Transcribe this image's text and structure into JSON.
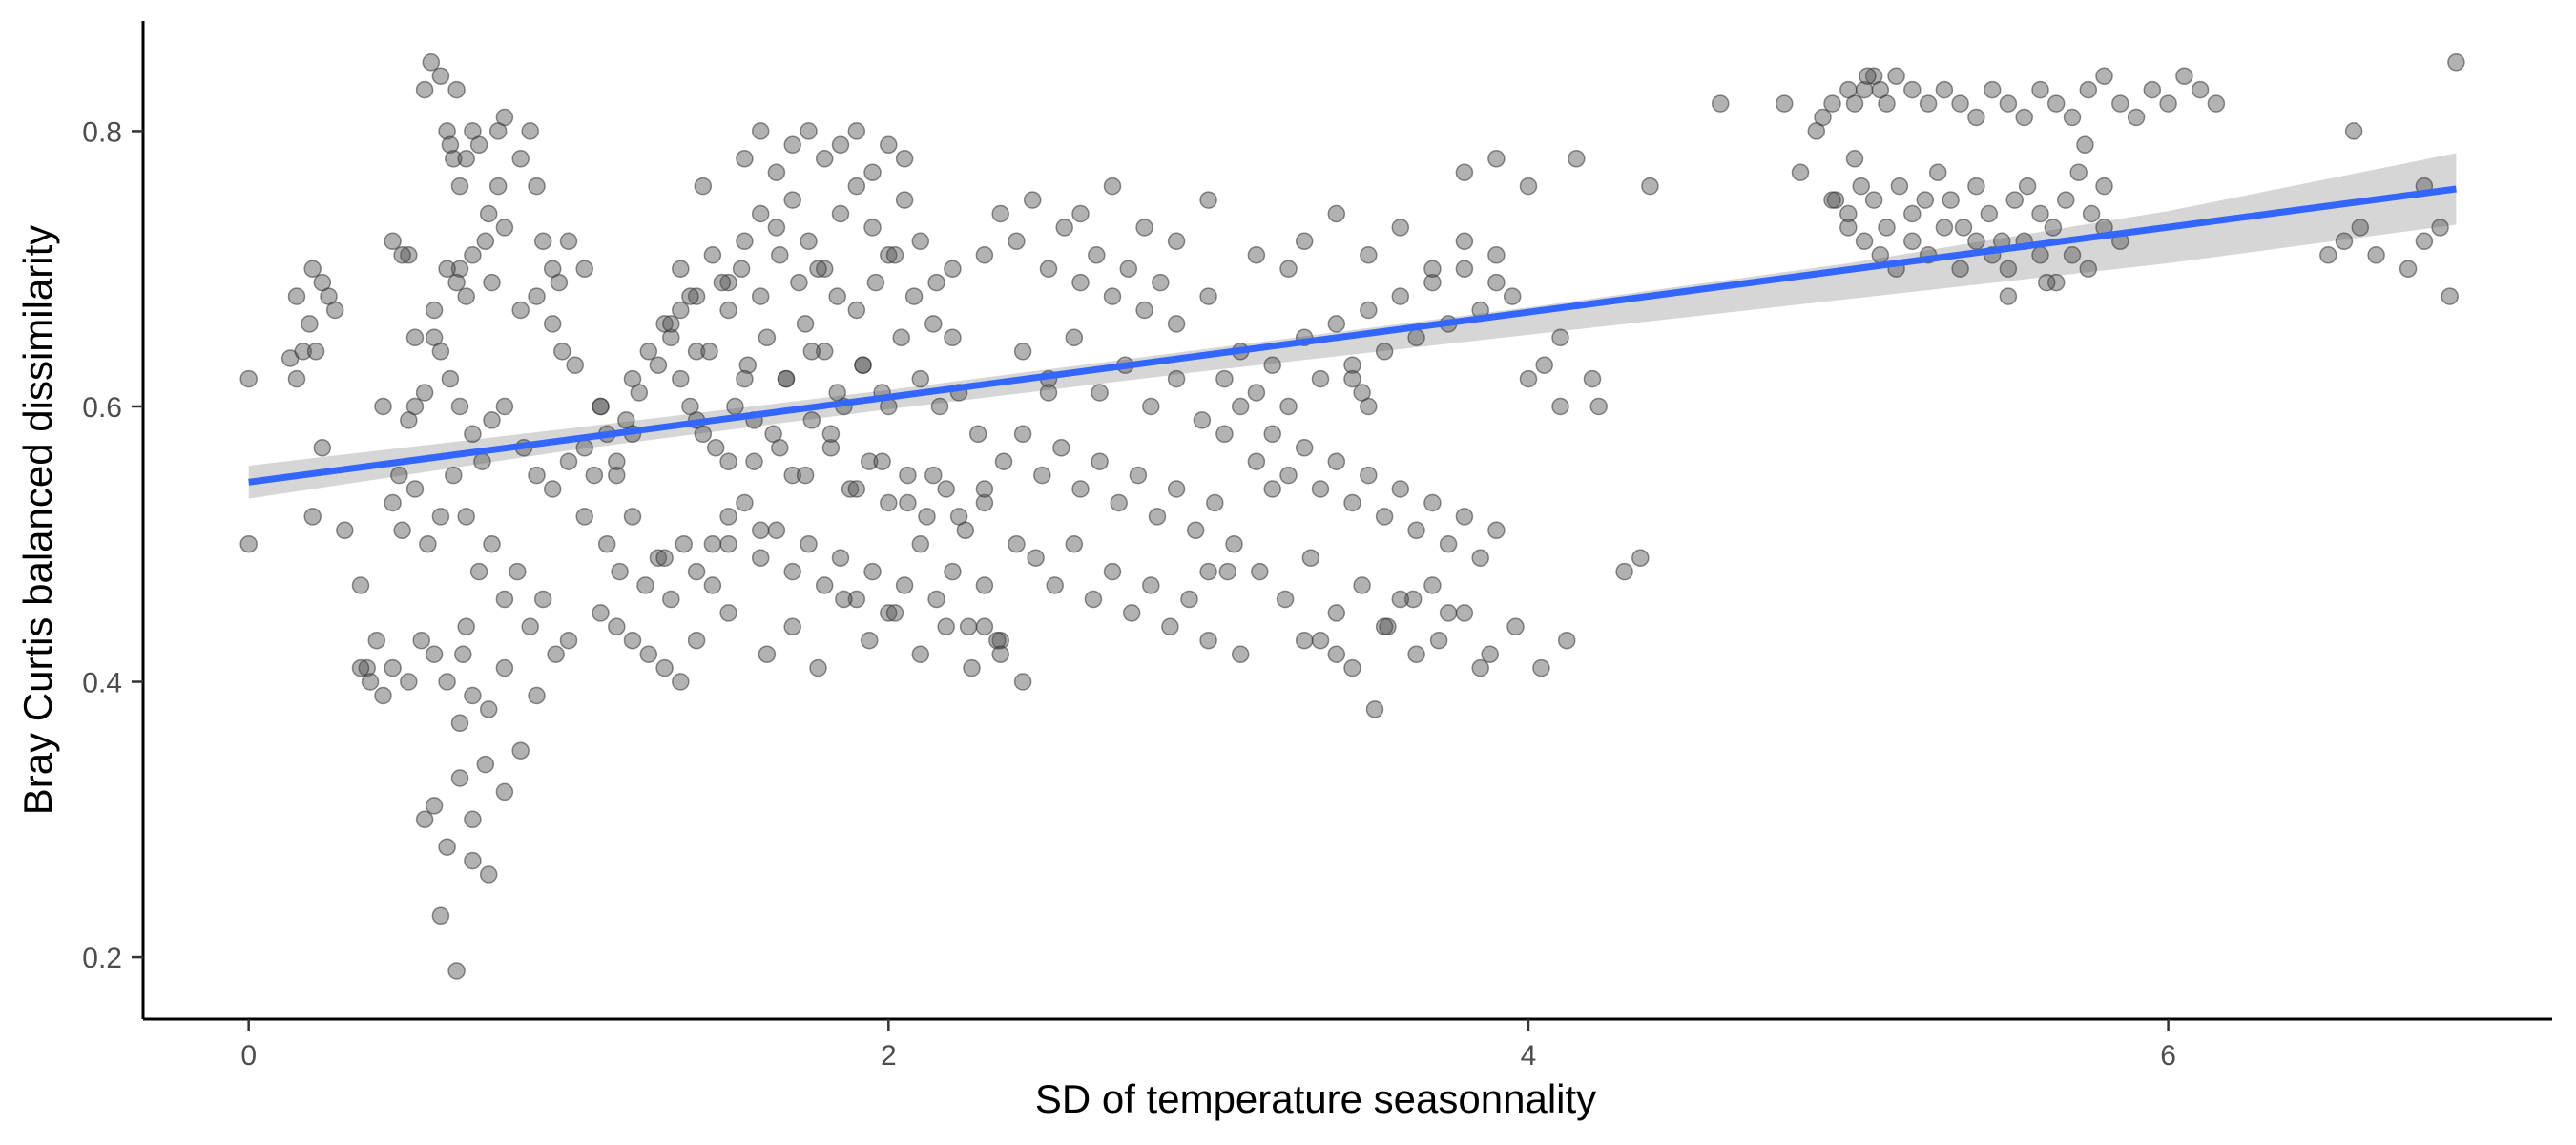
{
  "chart_data": {
    "type": "scatter",
    "title": "",
    "xlabel": "SD of temperature seasonnality",
    "ylabel": "Bray Curtis balanced dissimilarity",
    "xlim": [
      -0.33,
      7.2
    ],
    "ylim": [
      0.155,
      0.88
    ],
    "x_ticks": [
      0,
      2,
      4,
      6
    ],
    "y_ticks": [
      0.2,
      0.4,
      0.6,
      0.8
    ],
    "x_tick_labels": [
      "0",
      "2",
      "4",
      "6"
    ],
    "y_tick_labels": [
      "0.2",
      "0.4",
      "0.6",
      "0.8"
    ],
    "grid": false,
    "legend": "none",
    "colors": {
      "points": "#555555",
      "fit_line": "#3366FF",
      "ribbon": "#c8c8c8",
      "axis": "#000000"
    },
    "fit_line": {
      "x": [
        0,
        6.9
      ],
      "y": [
        0.545,
        0.758
      ]
    },
    "confidence_band": {
      "x": [
        0,
        1,
        2,
        3,
        4,
        5,
        6,
        6.9
      ],
      "lower": [
        0.533,
        0.568,
        0.598,
        0.626,
        0.652,
        0.678,
        0.704,
        0.732
      ],
      "upper": [
        0.557,
        0.584,
        0.612,
        0.642,
        0.672,
        0.704,
        0.742,
        0.784
      ]
    },
    "points": {
      "x": [
        0.0,
        0.0,
        0.13,
        0.15,
        0.17,
        0.19,
        0.2,
        0.21,
        0.23,
        0.25,
        0.27,
        0.2,
        0.15,
        0.23,
        0.3,
        0.35,
        0.37,
        0.4,
        0.42,
        0.45,
        0.47,
        0.5,
        0.52,
        0.48,
        0.55,
        0.57,
        0.6,
        0.62,
        0.65,
        0.63,
        0.64,
        0.66,
        0.68,
        0.66,
        0.7,
        0.72,
        0.74,
        0.76,
        0.78,
        0.8,
        0.85,
        0.88,
        0.9,
        0.92,
        0.95,
        0.97,
        1.0,
        1.05,
        0.58,
        0.62,
        0.65,
        0.68,
        0.7,
        0.75,
        0.78,
        0.8,
        0.85,
        0.9,
        0.95,
        0.98,
        1.02,
        0.5,
        0.52,
        0.55,
        0.58,
        0.6,
        0.63,
        0.66,
        0.7,
        0.73,
        0.76,
        0.8,
        0.86,
        0.9,
        0.95,
        1.0,
        1.05,
        1.1,
        1.15,
        1.2,
        0.45,
        0.48,
        0.52,
        0.56,
        0.6,
        0.64,
        0.68,
        0.72,
        0.76,
        0.8,
        0.84,
        0.88,
        0.92,
        0.96,
        1.0,
        0.35,
        0.38,
        0.42,
        0.45,
        0.5,
        0.54,
        0.58,
        0.62,
        0.66,
        0.7,
        0.75,
        0.8,
        0.85,
        0.9,
        0.55,
        0.58,
        0.62,
        0.66,
        0.7,
        0.74,
        0.6,
        0.65,
        0.7,
        0.75,
        0.8,
        0.67,
        0.68,
        1.1,
        1.12,
        1.15,
        1.18,
        1.2,
        1.22,
        1.25,
        1.28,
        1.3,
        1.32,
        1.35,
        1.38,
        1.4,
        1.05,
        1.08,
        1.12,
        1.16,
        1.2,
        1.24,
        1.28,
        1.32,
        1.36,
        1.4,
        1.1,
        1.15,
        1.2,
        1.25,
        1.3,
        1.35,
        1.4,
        1.45,
        1.5,
        1.3,
        1.35,
        1.4,
        1.45,
        1.5,
        1.55,
        1.6,
        1.65,
        1.7,
        1.75,
        1.8,
        1.85,
        1.9,
        1.95,
        2.0,
        2.05,
        2.1,
        2.15,
        2.2,
        1.32,
        1.38,
        1.44,
        1.5,
        1.56,
        1.62,
        1.68,
        1.74,
        1.8,
        1.86,
        1.92,
        1.98,
        2.04,
        2.1,
        2.16,
        2.22,
        2.28,
        1.4,
        1.46,
        1.52,
        1.58,
        1.64,
        1.7,
        1.76,
        1.82,
        1.88,
        1.94,
        2.0,
        2.06,
        2.12,
        2.18,
        2.24,
        2.3,
        1.45,
        1.5,
        1.55,
        1.6,
        1.65,
        1.7,
        1.75,
        1.8,
        1.85,
        1.9,
        1.95,
        2.0,
        2.05,
        2.1,
        2.15,
        2.2,
        2.25,
        2.3,
        2.35,
        1.5,
        1.55,
        1.6,
        1.65,
        1.7,
        1.75,
        1.8,
        1.85,
        1.9,
        1.95,
        2.0,
        2.05,
        1.42,
        1.48,
        1.54,
        1.6,
        1.66,
        1.72,
        1.78,
        1.84,
        1.9,
        1.96,
        2.02,
        2.08,
        2.14,
        2.2,
        1.35,
        1.42,
        1.5,
        1.58,
        1.66,
        1.74,
        1.82,
        1.9,
        1.98,
        2.06,
        2.14,
        2.22,
        2.3,
        1.6,
        1.68,
        1.76,
        1.84,
        1.92,
        2.0,
        1.55,
        1.62,
        1.7,
        1.78,
        1.86,
        1.94,
        2.02,
        2.1,
        2.18,
        2.26,
        2.34,
        2.42,
        2.3,
        2.35,
        2.4,
        2.45,
        2.5,
        2.55,
        2.6,
        2.65,
        2.7,
        2.75,
        2.8,
        2.85,
        2.9,
        2.3,
        2.36,
        2.42,
        2.48,
        2.54,
        2.6,
        2.66,
        2.72,
        2.78,
        2.84,
        2.9,
        2.96,
        3.02,
        2.4,
        2.46,
        2.52,
        2.58,
        2.64,
        2.7,
        2.76,
        2.82,
        2.88,
        2.94,
        3.0,
        3.06,
        2.35,
        2.42,
        2.5,
        2.58,
        2.66,
        2.74,
        2.82,
        2.9,
        2.98,
        2.5,
        2.6,
        2.7,
        2.8,
        2.9,
        3.0,
        3.0,
        3.05,
        3.1,
        3.15,
        3.2,
        3.25,
        3.3,
        3.35,
        3.4,
        3.45,
        3.5,
        3.55,
        3.6,
        3.65,
        3.7,
        3.75,
        3.8,
        3.85,
        3.9,
        3.95,
        4.0,
        4.05,
        4.1,
        3.05,
        3.1,
        3.15,
        3.2,
        3.25,
        3.3,
        3.35,
        3.4,
        3.45,
        3.5,
        3.55,
        3.6,
        3.65,
        3.7,
        3.75,
        3.8,
        3.85,
        3.9,
        3.0,
        3.08,
        3.16,
        3.24,
        3.32,
        3.4,
        3.48,
        3.56,
        3.64,
        3.72,
        3.8,
        3.88,
        3.96,
        4.04,
        4.12,
        3.1,
        3.2,
        3.3,
        3.4,
        3.5,
        3.6,
        3.7,
        3.8,
        3.9,
        3.15,
        3.25,
        3.35,
        3.45,
        3.55,
        3.65,
        3.75,
        3.85,
        3.3,
        3.4,
        3.5,
        3.45,
        3.48,
        3.52,
        3.6,
        3.7,
        3.8,
        3.9,
        4.0,
        4.1,
        4.2,
        4.22,
        4.3,
        4.35,
        4.38,
        4.15,
        4.6,
        4.8,
        4.85,
        4.9,
        4.95,
        5.0,
        5.02,
        5.05,
        5.08,
        5.1,
        5.12,
        5.15,
        5.2,
        5.25,
        5.3,
        5.35,
        5.4,
        5.45,
        5.5,
        5.55,
        5.6,
        5.65,
        5.7,
        5.75,
        5.8,
        5.85,
        5.9,
        5.95,
        6.0,
        6.05,
        6.1,
        6.15,
        4.92,
        4.96,
        5.0,
        5.04,
        5.08,
        5.12,
        5.16,
        5.2,
        5.24,
        5.28,
        5.32,
        5.36,
        5.4,
        5.44,
        5.48,
        5.52,
        5.56,
        5.6,
        5.64,
        5.68,
        5.72,
        5.76,
        5.8,
        4.95,
        5.0,
        5.05,
        5.1,
        5.15,
        5.2,
        5.25,
        5.3,
        5.35,
        5.4,
        5.45,
        5.5,
        5.55,
        5.6,
        5.65,
        5.7,
        5.75,
        5.8,
        5.85,
        6.5,
        6.55,
        6.6,
        6.65,
        6.75,
        6.8,
        6.85,
        6.88,
        6.9,
        5.02,
        5.06,
        5.5,
        5.62,
        5.74,
        6.58,
        6.8
      ],
      "y": [
        0.62,
        0.5,
        0.635,
        0.68,
        0.64,
        0.66,
        0.7,
        0.64,
        0.57,
        0.68,
        0.67,
        0.52,
        0.62,
        0.69,
        0.51,
        0.47,
        0.41,
        0.43,
        0.6,
        0.72,
        0.55,
        0.71,
        0.65,
        0.71,
        0.83,
        0.85,
        0.84,
        0.8,
        0.83,
        0.79,
        0.78,
        0.7,
        0.78,
        0.76,
        0.8,
        0.79,
        0.72,
        0.69,
        0.8,
        0.81,
        0.78,
        0.8,
        0.76,
        0.72,
        0.7,
        0.69,
        0.72,
        0.7,
        0.67,
        0.7,
        0.69,
        0.68,
        0.71,
        0.74,
        0.76,
        0.73,
        0.67,
        0.68,
        0.66,
        0.64,
        0.63,
        0.59,
        0.6,
        0.61,
        0.65,
        0.64,
        0.62,
        0.6,
        0.58,
        0.56,
        0.59,
        0.6,
        0.57,
        0.55,
        0.54,
        0.56,
        0.52,
        0.6,
        0.55,
        0.58,
        0.53,
        0.51,
        0.54,
        0.5,
        0.52,
        0.55,
        0.52,
        0.48,
        0.5,
        0.46,
        0.48,
        0.44,
        0.46,
        0.42,
        0.43,
        0.41,
        0.4,
        0.39,
        0.41,
        0.4,
        0.43,
        0.42,
        0.4,
        0.37,
        0.39,
        0.38,
        0.41,
        0.35,
        0.39,
        0.3,
        0.31,
        0.28,
        0.33,
        0.3,
        0.34,
        0.23,
        0.19,
        0.27,
        0.26,
        0.32,
        0.42,
        0.44,
        0.6,
        0.58,
        0.56,
        0.59,
        0.62,
        0.61,
        0.64,
        0.63,
        0.66,
        0.65,
        0.62,
        0.6,
        0.64,
        0.57,
        0.55,
        0.5,
        0.48,
        0.52,
        0.47,
        0.49,
        0.46,
        0.5,
        0.48,
        0.45,
        0.44,
        0.43,
        0.42,
        0.41,
        0.4,
        0.43,
        0.47,
        0.5,
        0.49,
        0.7,
        0.68,
        0.71,
        0.69,
        0.72,
        0.74,
        0.73,
        0.75,
        0.72,
        0.7,
        0.74,
        0.76,
        0.73,
        0.71,
        0.75,
        0.72,
        0.69,
        0.7,
        0.66,
        0.68,
        0.64,
        0.67,
        0.63,
        0.65,
        0.62,
        0.66,
        0.64,
        0.6,
        0.63,
        0.61,
        0.65,
        0.62,
        0.6,
        0.61,
        0.58,
        0.59,
        0.57,
        0.6,
        0.56,
        0.58,
        0.55,
        0.59,
        0.57,
        0.54,
        0.56,
        0.53,
        0.55,
        0.52,
        0.54,
        0.51,
        0.53,
        0.5,
        0.52,
        0.53,
        0.49,
        0.51,
        0.48,
        0.5,
        0.47,
        0.49,
        0.46,
        0.48,
        0.45,
        0.47,
        0.5,
        0.46,
        0.48,
        0.44,
        0.47,
        0.43,
        0.45,
        0.78,
        0.8,
        0.77,
        0.79,
        0.8,
        0.78,
        0.79,
        0.8,
        0.77,
        0.79,
        0.78,
        0.76,
        0.69,
        0.7,
        0.68,
        0.71,
        0.69,
        0.7,
        0.68,
        0.67,
        0.69,
        0.71,
        0.68,
        0.66,
        0.65,
        0.67,
        0.58,
        0.56,
        0.59,
        0.57,
        0.55,
        0.58,
        0.54,
        0.56,
        0.53,
        0.55,
        0.52,
        0.54,
        0.51,
        0.62,
        0.64,
        0.61,
        0.63,
        0.6,
        0.62,
        0.42,
        0.44,
        0.41,
        0.46,
        0.43,
        0.45,
        0.42,
        0.44,
        0.41,
        0.43,
        0.4,
        0.44,
        0.74,
        0.72,
        0.75,
        0.7,
        0.73,
        0.69,
        0.71,
        0.68,
        0.7,
        0.67,
        0.69,
        0.66,
        0.71,
        0.56,
        0.58,
        0.55,
        0.57,
        0.54,
        0.56,
        0.53,
        0.55,
        0.52,
        0.54,
        0.51,
        0.53,
        0.5,
        0.49,
        0.47,
        0.5,
        0.46,
        0.48,
        0.45,
        0.47,
        0.44,
        0.46,
        0.43,
        0.48,
        0.42,
        0.64,
        0.62,
        0.65,
        0.61,
        0.63,
        0.6,
        0.62,
        0.59,
        0.61,
        0.74,
        0.76,
        0.73,
        0.72,
        0.75,
        0.68,
        0.62,
        0.64,
        0.61,
        0.63,
        0.6,
        0.65,
        0.62,
        0.66,
        0.63,
        0.67,
        0.64,
        0.68,
        0.65,
        0.69,
        0.66,
        0.7,
        0.67,
        0.71,
        0.68,
        0.62,
        0.63,
        0.6,
        0.58,
        0.6,
        0.56,
        0.58,
        0.55,
        0.57,
        0.54,
        0.56,
        0.53,
        0.55,
        0.52,
        0.54,
        0.51,
        0.53,
        0.5,
        0.52,
        0.49,
        0.51,
        0.48,
        0.5,
        0.48,
        0.46,
        0.49,
        0.45,
        0.47,
        0.44,
        0.46,
        0.43,
        0.45,
        0.42,
        0.44,
        0.41,
        0.43,
        0.42,
        0.54,
        0.72,
        0.74,
        0.71,
        0.73,
        0.7,
        0.72,
        0.69,
        0.71,
        0.7,
        0.43,
        0.41,
        0.44,
        0.42,
        0.45,
        0.41,
        0.43,
        0.42,
        0.6,
        0.62,
        0.61,
        0.38,
        0.46,
        0.47,
        0.77,
        0.78,
        0.76,
        0.65,
        0.62,
        0.6,
        0.48,
        0.49,
        0.76,
        0.78,
        0.82,
        0.82,
        0.77,
        0.8,
        0.82,
        0.83,
        0.82,
        0.83,
        0.84,
        0.83,
        0.82,
        0.84,
        0.83,
        0.82,
        0.83,
        0.82,
        0.81,
        0.83,
        0.82,
        0.81,
        0.83,
        0.82,
        0.81,
        0.83,
        0.84,
        0.82,
        0.81,
        0.83,
        0.82,
        0.84,
        0.83,
        0.82,
        0.81,
        0.75,
        0.74,
        0.76,
        0.75,
        0.73,
        0.76,
        0.74,
        0.75,
        0.77,
        0.75,
        0.73,
        0.76,
        0.74,
        0.72,
        0.75,
        0.76,
        0.74,
        0.73,
        0.75,
        0.77,
        0.74,
        0.76,
        0.75,
        0.73,
        0.72,
        0.71,
        0.7,
        0.72,
        0.71,
        0.73,
        0.7,
        0.72,
        0.71,
        0.7,
        0.72,
        0.71,
        0.69,
        0.71,
        0.7,
        0.73,
        0.72,
        0.71,
        0.72,
        0.73,
        0.71,
        0.7,
        0.72,
        0.73,
        0.68,
        0.85,
        0.78,
        0.84,
        0.68,
        0.69,
        0.79,
        0.8,
        0.76
      ]
    }
  }
}
